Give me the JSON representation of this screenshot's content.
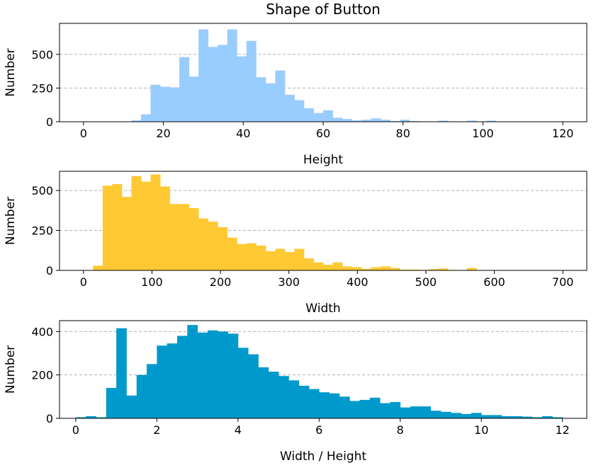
{
  "figure": {
    "title": "Shape of Button"
  },
  "chart_data": [
    {
      "type": "bar",
      "title": "Shape of Button",
      "xlabel": "Height",
      "ylabel": "Number",
      "color": "#99ccff",
      "xlim": [
        -6,
        126
      ],
      "ylim": [
        0,
        730
      ],
      "xticks": [
        0,
        20,
        40,
        60,
        80,
        100,
        120
      ],
      "yticks": [
        0,
        250,
        500
      ],
      "grid": "y-dashed",
      "bin_width": 2.4,
      "bins": [
        {
          "x": 12.0,
          "y": 10
        },
        {
          "x": 14.4,
          "y": 55
        },
        {
          "x": 16.8,
          "y": 275
        },
        {
          "x": 19.2,
          "y": 260
        },
        {
          "x": 21.6,
          "y": 255
        },
        {
          "x": 24.0,
          "y": 480
        },
        {
          "x": 26.4,
          "y": 335
        },
        {
          "x": 28.8,
          "y": 685
        },
        {
          "x": 31.2,
          "y": 555
        },
        {
          "x": 33.6,
          "y": 570
        },
        {
          "x": 36.0,
          "y": 685
        },
        {
          "x": 38.4,
          "y": 485
        },
        {
          "x": 40.8,
          "y": 600
        },
        {
          "x": 43.2,
          "y": 330
        },
        {
          "x": 45.6,
          "y": 285
        },
        {
          "x": 48.0,
          "y": 380
        },
        {
          "x": 50.4,
          "y": 200
        },
        {
          "x": 52.8,
          "y": 160
        },
        {
          "x": 55.2,
          "y": 100
        },
        {
          "x": 57.6,
          "y": 65
        },
        {
          "x": 60.0,
          "y": 85
        },
        {
          "x": 62.4,
          "y": 30
        },
        {
          "x": 64.8,
          "y": 20
        },
        {
          "x": 67.2,
          "y": 10
        },
        {
          "x": 69.6,
          "y": 15
        },
        {
          "x": 72.0,
          "y": 25
        },
        {
          "x": 74.4,
          "y": 15
        },
        {
          "x": 76.8,
          "y": 5
        },
        {
          "x": 79.2,
          "y": 15
        },
        {
          "x": 81.6,
          "y": 5
        },
        {
          "x": 84.0,
          "y": 3
        },
        {
          "x": 88.8,
          "y": 8
        },
        {
          "x": 91.2,
          "y": 3
        },
        {
          "x": 96.0,
          "y": 8
        },
        {
          "x": 100.8,
          "y": 8
        }
      ]
    },
    {
      "type": "bar",
      "xlabel": "Width",
      "ylabel": "Number",
      "color": "#ffc933",
      "xlim": [
        -35,
        735
      ],
      "ylim": [
        0,
        620
      ],
      "xticks": [
        0,
        100,
        200,
        300,
        400,
        500,
        600,
        700
      ],
      "yticks": [
        0,
        250,
        500
      ],
      "grid": "y-dashed",
      "bin_width": 14,
      "bins": [
        {
          "x": 14,
          "y": 30
        },
        {
          "x": 28,
          "y": 530
        },
        {
          "x": 42,
          "y": 540
        },
        {
          "x": 56,
          "y": 460
        },
        {
          "x": 70,
          "y": 590
        },
        {
          "x": 84,
          "y": 555
        },
        {
          "x": 98,
          "y": 600
        },
        {
          "x": 112,
          "y": 525
        },
        {
          "x": 126,
          "y": 415
        },
        {
          "x": 140,
          "y": 415
        },
        {
          "x": 154,
          "y": 390
        },
        {
          "x": 168,
          "y": 325
        },
        {
          "x": 182,
          "y": 305
        },
        {
          "x": 196,
          "y": 270
        },
        {
          "x": 210,
          "y": 205
        },
        {
          "x": 224,
          "y": 165
        },
        {
          "x": 238,
          "y": 170
        },
        {
          "x": 252,
          "y": 155
        },
        {
          "x": 266,
          "y": 120
        },
        {
          "x": 280,
          "y": 135
        },
        {
          "x": 294,
          "y": 115
        },
        {
          "x": 308,
          "y": 135
        },
        {
          "x": 322,
          "y": 75
        },
        {
          "x": 336,
          "y": 50
        },
        {
          "x": 350,
          "y": 35
        },
        {
          "x": 364,
          "y": 50
        },
        {
          "x": 378,
          "y": 25
        },
        {
          "x": 392,
          "y": 20
        },
        {
          "x": 406,
          "y": 10
        },
        {
          "x": 420,
          "y": 20
        },
        {
          "x": 434,
          "y": 25
        },
        {
          "x": 448,
          "y": 15
        },
        {
          "x": 462,
          "y": 5
        },
        {
          "x": 476,
          "y": 5
        },
        {
          "x": 490,
          "y": 3
        },
        {
          "x": 504,
          "y": 8
        },
        {
          "x": 518,
          "y": 12
        },
        {
          "x": 532,
          "y": 3
        },
        {
          "x": 560,
          "y": 15
        }
      ]
    },
    {
      "type": "bar",
      "xlabel": "Width / Height",
      "ylabel": "Number",
      "color": "#0099cc",
      "xlim": [
        -0.4,
        12.6
      ],
      "ylim": [
        0,
        450
      ],
      "xticks": [
        0,
        2,
        4,
        6,
        8,
        10,
        12
      ],
      "yticks": [
        0,
        200,
        400
      ],
      "grid": "y-dashed",
      "bin_width": 0.25,
      "bins": [
        {
          "x": 0.0,
          "y": 5
        },
        {
          "x": 0.25,
          "y": 10
        },
        {
          "x": 0.5,
          "y": 5
        },
        {
          "x": 0.75,
          "y": 140
        },
        {
          "x": 1.0,
          "y": 415
        },
        {
          "x": 1.25,
          "y": 105
        },
        {
          "x": 1.5,
          "y": 200
        },
        {
          "x": 1.75,
          "y": 250
        },
        {
          "x": 2.0,
          "y": 335
        },
        {
          "x": 2.25,
          "y": 345
        },
        {
          "x": 2.5,
          "y": 380
        },
        {
          "x": 2.75,
          "y": 430
        },
        {
          "x": 3.0,
          "y": 395
        },
        {
          "x": 3.25,
          "y": 405
        },
        {
          "x": 3.5,
          "y": 400
        },
        {
          "x": 3.75,
          "y": 390
        },
        {
          "x": 4.0,
          "y": 325
        },
        {
          "x": 4.25,
          "y": 295
        },
        {
          "x": 4.5,
          "y": 235
        },
        {
          "x": 4.75,
          "y": 215
        },
        {
          "x": 5.0,
          "y": 195
        },
        {
          "x": 5.25,
          "y": 175
        },
        {
          "x": 5.5,
          "y": 150
        },
        {
          "x": 5.75,
          "y": 135
        },
        {
          "x": 6.0,
          "y": 120
        },
        {
          "x": 6.25,
          "y": 115
        },
        {
          "x": 6.5,
          "y": 100
        },
        {
          "x": 6.75,
          "y": 80
        },
        {
          "x": 7.0,
          "y": 85
        },
        {
          "x": 7.25,
          "y": 95
        },
        {
          "x": 7.5,
          "y": 70
        },
        {
          "x": 7.75,
          "y": 75
        },
        {
          "x": 8.0,
          "y": 50
        },
        {
          "x": 8.25,
          "y": 55
        },
        {
          "x": 8.5,
          "y": 55
        },
        {
          "x": 8.75,
          "y": 35
        },
        {
          "x": 9.0,
          "y": 30
        },
        {
          "x": 9.25,
          "y": 25
        },
        {
          "x": 9.5,
          "y": 20
        },
        {
          "x": 9.75,
          "y": 25
        },
        {
          "x": 10.0,
          "y": 15
        },
        {
          "x": 10.25,
          "y": 15
        },
        {
          "x": 10.5,
          "y": 10
        },
        {
          "x": 10.75,
          "y": 10
        },
        {
          "x": 11.0,
          "y": 8
        },
        {
          "x": 11.25,
          "y": 5
        },
        {
          "x": 11.5,
          "y": 10
        },
        {
          "x": 11.75,
          "y": 5
        }
      ]
    }
  ]
}
